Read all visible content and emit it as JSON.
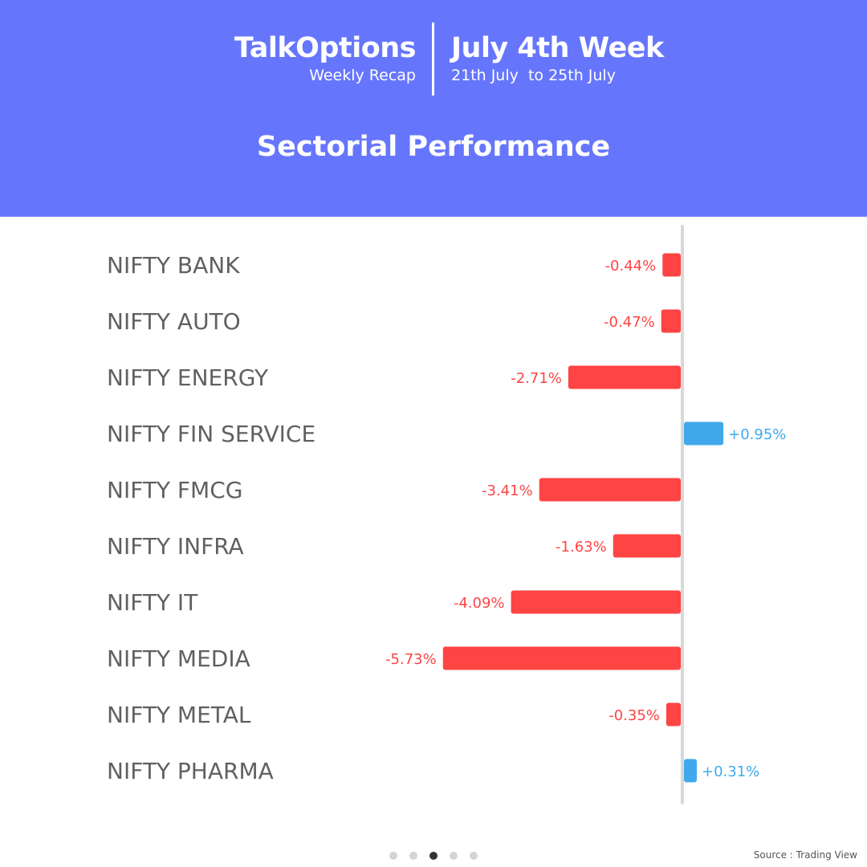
{
  "header": {
    "brand": "TalkOptions",
    "brand_sub": "Weekly Recap",
    "week_title": "July 4th Week",
    "week_range": "21th July  to 25th July",
    "section_title": "Sectorial Performance"
  },
  "colors": {
    "header_bg": "#6676fc",
    "negative": "#ff4444",
    "positive": "#40a9ec",
    "label": "#606060",
    "axis": "#d8d8d8"
  },
  "chart_data": {
    "type": "bar",
    "orientation": "horizontal",
    "categories": [
      "NIFTY BANK",
      "NIFTY AUTO",
      "NIFTY ENERGY",
      "NIFTY FIN SERVICE",
      "NIFTY FMCG",
      "NIFTY INFRA",
      "NIFTY IT",
      "NIFTY MEDIA",
      "NIFTY METAL",
      "NIFTY PHARMA"
    ],
    "values": [
      -0.44,
      -0.47,
      -2.71,
      0.95,
      -3.41,
      -1.63,
      -4.09,
      -5.73,
      -0.35,
      0.31
    ],
    "value_labels": [
      "-0.44%",
      "-0.47%",
      "-2.71%",
      "+0.95%",
      "-3.41%",
      "-1.63%",
      "-4.09%",
      "-5.73%",
      "-0.35%",
      "+0.31%"
    ],
    "title": "Sectorial Performance",
    "xlabel": "",
    "ylabel": "",
    "unit": "%"
  },
  "pager": {
    "count": 5,
    "active": 3
  },
  "footer": {
    "source": "Source : Trading View"
  }
}
